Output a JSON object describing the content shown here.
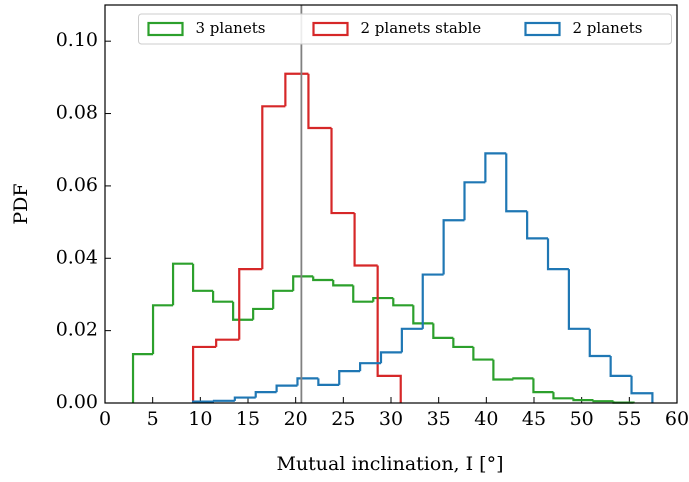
{
  "chart_data": {
    "type": "histogram",
    "xlabel": "Mutual inclination, I [°]",
    "ylabel": "PDF",
    "xlim": [
      0,
      60
    ],
    "ylim": [
      0,
      0.11
    ],
    "xticks": [
      0,
      5,
      10,
      15,
      20,
      25,
      30,
      35,
      40,
      45,
      50,
      55,
      60
    ],
    "yticks": [
      {
        "value": 0,
        "label": "0.00"
      },
      {
        "value": 0.02,
        "label": "0.02"
      },
      {
        "value": 0.04,
        "label": "0.04"
      },
      {
        "value": 0.06,
        "label": "0.06"
      },
      {
        "value": 0.08,
        "label": "0.08"
      },
      {
        "value": 0.1,
        "label": "0.10"
      }
    ],
    "vline": {
      "x": 20.6,
      "color": "#808080"
    },
    "legend_loc": "upper center",
    "series": [
      {
        "name": "3 planets",
        "color": "#2ca02c",
        "bins": [
          2.94,
          5.04,
          7.14,
          9.24,
          11.34,
          13.44,
          15.54,
          17.64,
          19.74,
          21.84,
          23.94,
          26.04,
          28.14,
          30.24,
          32.34,
          34.44,
          36.54,
          38.64,
          40.74,
          42.84,
          44.94,
          47.04,
          49.14,
          51.24,
          53.34,
          55.44
        ],
        "values": [
          0.0135,
          0.027,
          0.0385,
          0.031,
          0.028,
          0.023,
          0.026,
          0.031,
          0.035,
          0.034,
          0.0325,
          0.028,
          0.029,
          0.027,
          0.022,
          0.018,
          0.0155,
          0.012,
          0.0065,
          0.0068,
          0.003,
          0.0013,
          0.0008,
          0.0005,
          0.0001
        ]
      },
      {
        "name": "2 planets stable",
        "color": "#d62728",
        "bins": [
          9.24,
          11.66,
          14.08,
          16.5,
          18.92,
          21.34,
          23.76,
          26.18,
          28.6,
          31.02
        ],
        "values": [
          0.0155,
          0.0175,
          0.037,
          0.082,
          0.091,
          0.076,
          0.0525,
          0.038,
          0.0075
        ]
      },
      {
        "name": "2 planets",
        "color": "#1f77b4",
        "bins": [
          9.24,
          11.43,
          13.62,
          15.81,
          18.0,
          20.19,
          22.38,
          24.57,
          26.76,
          28.95,
          31.14,
          33.33,
          35.52,
          37.71,
          39.9,
          42.09,
          44.28,
          46.47,
          48.66,
          50.85,
          53.04,
          55.23,
          57.42
        ],
        "values": [
          0.0004,
          0.0006,
          0.0015,
          0.003,
          0.0048,
          0.0068,
          0.005,
          0.0088,
          0.011,
          0.014,
          0.0205,
          0.0355,
          0.0505,
          0.061,
          0.069,
          0.053,
          0.0455,
          0.037,
          0.0205,
          0.013,
          0.0075,
          0.0027
        ]
      }
    ]
  }
}
